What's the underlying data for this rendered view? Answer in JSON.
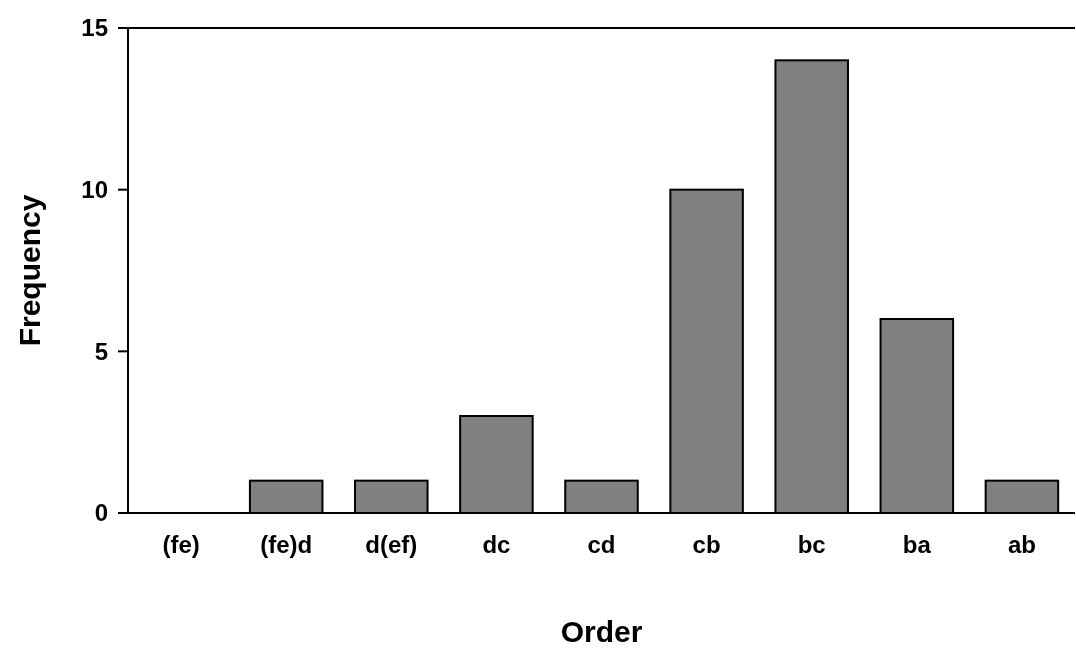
{
  "chart_data": {
    "type": "bar",
    "xlabel": "Order",
    "ylabel": "Frequency",
    "categories": [
      "(fe)",
      "(fe)d",
      "d(ef)",
      "dc",
      "cd",
      "cb",
      "bc",
      "ba",
      "ab"
    ],
    "values": [
      0,
      1,
      1,
      3,
      1,
      10,
      14,
      6,
      1
    ],
    "color": "#808080",
    "ylim": [
      0,
      15
    ],
    "yticks": [
      0,
      5,
      10,
      15
    ],
    "grid": false
  }
}
